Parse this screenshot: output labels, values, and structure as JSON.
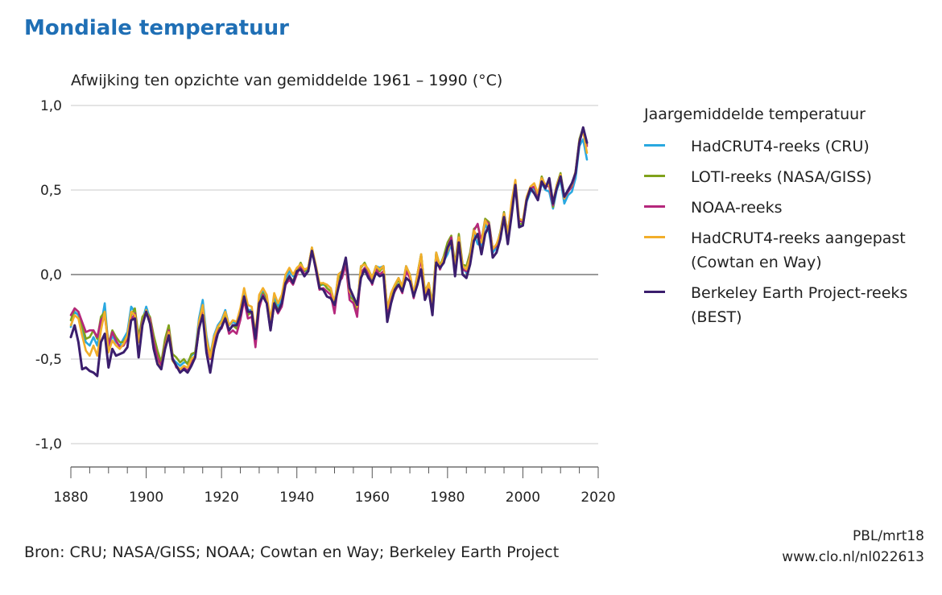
{
  "header": {
    "title": "Mondiale temperatuur",
    "ylabel": "Afwijking ten opzichte van gemiddelde 1961 – 1990 (°C)"
  },
  "legend": {
    "title": "Jaargemiddelde temperatuur"
  },
  "footer": {
    "source": "Bron: CRU; NASA/GISS; NOAA; Cowtan en Way; Berkeley Earth Project",
    "credit_line1": "PBL/mrt18",
    "credit_line2": "www.clo.nl/nl022613"
  },
  "chart_data": {
    "type": "line",
    "title": "Mondiale temperatuur",
    "ylabel": "Afwijking ten opzichte van gemiddelde 1961 – 1990 (°C)",
    "xlabel": "",
    "xlim": [
      1880,
      2020
    ],
    "ylim": [
      -1.1,
      1.0
    ],
    "xticks": [
      1880,
      1900,
      1920,
      1940,
      1960,
      1980,
      2000,
      2020
    ],
    "yticks": [
      {
        "value": 1.0,
        "label": "1,0"
      },
      {
        "value": 0.5,
        "label": "0,5"
      },
      {
        "value": 0.0,
        "label": "0,0"
      },
      {
        "value": -0.5,
        "label": "-0,5"
      },
      {
        "value": -1.0,
        "label": "-1,0"
      }
    ],
    "grid": "horizontal",
    "legend_position": "right",
    "x": [
      1880,
      1881,
      1882,
      1883,
      1884,
      1885,
      1886,
      1887,
      1888,
      1889,
      1890,
      1891,
      1892,
      1893,
      1894,
      1895,
      1896,
      1897,
      1898,
      1899,
      1900,
      1901,
      1902,
      1903,
      1904,
      1905,
      1906,
      1907,
      1908,
      1909,
      1910,
      1911,
      1912,
      1913,
      1914,
      1915,
      1916,
      1917,
      1918,
      1919,
      1920,
      1921,
      1922,
      1923,
      1924,
      1925,
      1926,
      1927,
      1928,
      1929,
      1930,
      1931,
      1932,
      1933,
      1934,
      1935,
      1936,
      1937,
      1938,
      1939,
      1940,
      1941,
      1942,
      1943,
      1944,
      1945,
      1946,
      1947,
      1948,
      1949,
      1950,
      1951,
      1952,
      1953,
      1954,
      1955,
      1956,
      1957,
      1958,
      1959,
      1960,
      1961,
      1962,
      1963,
      1964,
      1965,
      1966,
      1967,
      1968,
      1969,
      1970,
      1971,
      1972,
      1973,
      1974,
      1975,
      1976,
      1977,
      1978,
      1979,
      1980,
      1981,
      1982,
      1983,
      1984,
      1985,
      1986,
      1987,
      1988,
      1989,
      1990,
      1991,
      1992,
      1993,
      1994,
      1995,
      1996,
      1997,
      1998,
      1999,
      2000,
      2001,
      2002,
      2003,
      2004,
      2005,
      2006,
      2007,
      2008,
      2009,
      2010,
      2011,
      2012,
      2013,
      2014,
      2015,
      2016,
      2017
    ],
    "series": [
      {
        "name": "HadCRUT4-reeks (CRU)",
        "color": "#29a8e0",
        "values": [
          -0.31,
          -0.22,
          -0.24,
          -0.33,
          -0.4,
          -0.42,
          -0.37,
          -0.42,
          -0.3,
          -0.17,
          -0.44,
          -0.36,
          -0.4,
          -0.42,
          -0.38,
          -0.34,
          -0.19,
          -0.22,
          -0.38,
          -0.27,
          -0.19,
          -0.26,
          -0.42,
          -0.5,
          -0.55,
          -0.41,
          -0.32,
          -0.5,
          -0.52,
          -0.54,
          -0.52,
          -0.52,
          -0.48,
          -0.46,
          -0.26,
          -0.15,
          -0.36,
          -0.48,
          -0.36,
          -0.3,
          -0.27,
          -0.21,
          -0.3,
          -0.28,
          -0.29,
          -0.22,
          -0.1,
          -0.21,
          -0.21,
          -0.37,
          -0.15,
          -0.1,
          -0.15,
          -0.29,
          -0.14,
          -0.19,
          -0.14,
          -0.02,
          0.02,
          -0.01,
          0.02,
          0.05,
          0.02,
          0.02,
          0.15,
          0.05,
          -0.06,
          -0.06,
          -0.06,
          -0.08,
          -0.17,
          0.0,
          0.02,
          0.09,
          -0.11,
          -0.14,
          -0.19,
          0.05,
          0.06,
          0.03,
          -0.02,
          0.05,
          0.04,
          0.05,
          -0.2,
          -0.11,
          -0.06,
          -0.02,
          -0.07,
          0.05,
          0.0,
          -0.11,
          0.0,
          0.12,
          -0.12,
          -0.05,
          -0.2,
          0.13,
          0.03,
          0.08,
          0.12,
          0.18,
          0.04,
          0.2,
          0.04,
          0.01,
          0.08,
          0.24,
          0.18,
          0.17,
          0.3,
          0.25,
          0.13,
          0.16,
          0.22,
          0.34,
          0.21,
          0.41,
          0.54,
          0.3,
          0.29,
          0.43,
          0.49,
          0.51,
          0.45,
          0.54,
          0.5,
          0.49,
          0.39,
          0.5,
          0.56,
          0.42,
          0.47,
          0.49,
          0.57,
          0.76,
          0.8,
          0.68
        ]
      },
      {
        "name": "LOTI-reeks (NASA/GISS)",
        "color": "#80a21b",
        "values": [
          -0.27,
          -0.2,
          -0.22,
          -0.3,
          -0.38,
          -0.37,
          -0.33,
          -0.38,
          -0.25,
          -0.22,
          -0.41,
          -0.33,
          -0.37,
          -0.4,
          -0.4,
          -0.36,
          -0.24,
          -0.2,
          -0.37,
          -0.25,
          -0.22,
          -0.25,
          -0.36,
          -0.45,
          -0.52,
          -0.38,
          -0.3,
          -0.47,
          -0.49,
          -0.52,
          -0.5,
          -0.53,
          -0.47,
          -0.46,
          -0.3,
          -0.2,
          -0.38,
          -0.48,
          -0.38,
          -0.32,
          -0.31,
          -0.24,
          -0.33,
          -0.3,
          -0.32,
          -0.25,
          -0.13,
          -0.24,
          -0.22,
          -0.41,
          -0.18,
          -0.11,
          -0.15,
          -0.31,
          -0.16,
          -0.21,
          -0.17,
          -0.04,
          -0.01,
          -0.04,
          0.02,
          0.07,
          0.02,
          0.04,
          0.16,
          0.05,
          -0.07,
          -0.05,
          -0.08,
          -0.1,
          -0.18,
          -0.02,
          0.0,
          0.08,
          -0.13,
          -0.15,
          -0.22,
          0.04,
          0.07,
          0.02,
          -0.03,
          0.05,
          0.02,
          0.05,
          -0.22,
          -0.12,
          -0.07,
          -0.03,
          -0.09,
          0.03,
          0.0,
          -0.12,
          0.0,
          0.12,
          -0.1,
          -0.05,
          -0.17,
          0.13,
          0.05,
          0.11,
          0.19,
          0.23,
          0.06,
          0.24,
          0.06,
          0.05,
          0.13,
          0.27,
          0.29,
          0.2,
          0.33,
          0.31,
          0.15,
          0.17,
          0.25,
          0.37,
          0.24,
          0.4,
          0.53,
          0.3,
          0.3,
          0.45,
          0.51,
          0.52,
          0.46,
          0.58,
          0.52,
          0.54,
          0.4,
          0.53,
          0.6,
          0.46,
          0.49,
          0.53,
          0.61,
          0.8,
          0.87,
          0.77
        ]
      },
      {
        "name": "NOAA-reeks",
        "color": "#b5277c",
        "values": [
          -0.24,
          -0.2,
          -0.22,
          -0.28,
          -0.34,
          -0.33,
          -0.33,
          -0.37,
          -0.27,
          -0.24,
          -0.42,
          -0.34,
          -0.39,
          -0.43,
          -0.42,
          -0.38,
          -0.27,
          -0.23,
          -0.4,
          -0.28,
          -0.23,
          -0.26,
          -0.4,
          -0.49,
          -0.54,
          -0.42,
          -0.33,
          -0.49,
          -0.55,
          -0.56,
          -0.55,
          -0.57,
          -0.51,
          -0.49,
          -0.33,
          -0.21,
          -0.4,
          -0.5,
          -0.4,
          -0.33,
          -0.32,
          -0.26,
          -0.35,
          -0.33,
          -0.35,
          -0.27,
          -0.15,
          -0.26,
          -0.25,
          -0.43,
          -0.2,
          -0.12,
          -0.17,
          -0.33,
          -0.18,
          -0.23,
          -0.19,
          -0.06,
          -0.03,
          -0.06,
          0.0,
          0.05,
          0.0,
          0.02,
          0.15,
          0.03,
          -0.09,
          -0.08,
          -0.1,
          -0.12,
          -0.23,
          -0.05,
          -0.02,
          0.06,
          -0.15,
          -0.17,
          -0.25,
          0.01,
          0.04,
          0.0,
          -0.06,
          0.03,
          0.0,
          0.02,
          -0.25,
          -0.15,
          -0.1,
          -0.06,
          -0.11,
          0.02,
          -0.02,
          -0.14,
          -0.03,
          0.1,
          -0.13,
          -0.08,
          -0.2,
          0.1,
          0.03,
          0.09,
          0.16,
          0.22,
          0.04,
          0.22,
          0.03,
          0.02,
          0.11,
          0.26,
          0.3,
          0.19,
          0.32,
          0.3,
          0.15,
          0.17,
          0.24,
          0.36,
          0.24,
          0.42,
          0.54,
          0.32,
          0.31,
          0.45,
          0.51,
          0.52,
          0.47,
          0.57,
          0.53,
          0.52,
          0.41,
          0.52,
          0.58,
          0.45,
          0.49,
          0.52,
          0.6,
          0.79,
          0.86,
          0.76
        ]
      },
      {
        "name": "HadCRUT4-reeks aangepast\n(Cowtan en Way)",
        "color": "#f2ae2a",
        "values": [
          -0.3,
          -0.24,
          -0.26,
          -0.36,
          -0.45,
          -0.48,
          -0.42,
          -0.48,
          -0.33,
          -0.22,
          -0.46,
          -0.39,
          -0.42,
          -0.44,
          -0.41,
          -0.36,
          -0.22,
          -0.24,
          -0.4,
          -0.29,
          -0.21,
          -0.28,
          -0.44,
          -0.52,
          -0.56,
          -0.43,
          -0.34,
          -0.51,
          -0.54,
          -0.56,
          -0.54,
          -0.55,
          -0.5,
          -0.48,
          -0.28,
          -0.18,
          -0.38,
          -0.49,
          -0.37,
          -0.31,
          -0.28,
          -0.22,
          -0.3,
          -0.27,
          -0.28,
          -0.2,
          -0.08,
          -0.18,
          -0.19,
          -0.35,
          -0.12,
          -0.08,
          -0.12,
          -0.27,
          -0.11,
          -0.17,
          -0.12,
          0.0,
          0.04,
          0.0,
          0.04,
          0.06,
          0.03,
          0.04,
          0.16,
          0.06,
          -0.05,
          -0.05,
          -0.06,
          -0.08,
          -0.17,
          0.0,
          0.02,
          0.09,
          -0.1,
          -0.13,
          -0.19,
          0.05,
          0.06,
          0.03,
          -0.02,
          0.05,
          0.03,
          0.05,
          -0.2,
          -0.11,
          -0.06,
          -0.02,
          -0.07,
          0.05,
          0.0,
          -0.11,
          0.0,
          0.12,
          -0.11,
          -0.05,
          -0.19,
          0.13,
          0.04,
          0.1,
          0.14,
          0.2,
          0.05,
          0.22,
          0.05,
          0.03,
          0.1,
          0.26,
          0.22,
          0.19,
          0.32,
          0.28,
          0.15,
          0.18,
          0.24,
          0.36,
          0.24,
          0.43,
          0.56,
          0.33,
          0.32,
          0.46,
          0.52,
          0.54,
          0.48,
          0.57,
          0.53,
          0.53,
          0.43,
          0.53,
          0.59,
          0.45,
          0.5,
          0.53,
          0.61,
          0.79,
          0.85,
          0.72
        ]
      },
      {
        "name": "Berkeley Earth Project-reeks\n(BEST)",
        "color": "#3b1e6d",
        "values": [
          -0.37,
          -0.3,
          -0.4,
          -0.56,
          -0.55,
          -0.57,
          -0.58,
          -0.6,
          -0.4,
          -0.35,
          -0.55,
          -0.44,
          -0.48,
          -0.47,
          -0.46,
          -0.43,
          -0.27,
          -0.26,
          -0.49,
          -0.3,
          -0.22,
          -0.29,
          -0.44,
          -0.53,
          -0.56,
          -0.44,
          -0.36,
          -0.5,
          -0.54,
          -0.58,
          -0.56,
          -0.58,
          -0.54,
          -0.49,
          -0.32,
          -0.24,
          -0.46,
          -0.58,
          -0.44,
          -0.35,
          -0.31,
          -0.26,
          -0.33,
          -0.3,
          -0.3,
          -0.24,
          -0.13,
          -0.22,
          -0.22,
          -0.38,
          -0.17,
          -0.13,
          -0.17,
          -0.33,
          -0.17,
          -0.22,
          -0.17,
          -0.05,
          -0.01,
          -0.05,
          0.02,
          0.03,
          -0.01,
          0.02,
          0.14,
          0.04,
          -0.08,
          -0.09,
          -0.13,
          -0.14,
          -0.18,
          -0.08,
          0.01,
          0.1,
          -0.08,
          -0.13,
          -0.18,
          -0.02,
          0.03,
          -0.02,
          -0.05,
          0.01,
          -0.01,
          0.0,
          -0.28,
          -0.17,
          -0.09,
          -0.06,
          -0.1,
          -0.02,
          -0.04,
          -0.13,
          -0.06,
          0.03,
          -0.15,
          -0.09,
          -0.24,
          0.07,
          0.04,
          0.07,
          0.16,
          0.2,
          -0.01,
          0.19,
          0.0,
          -0.02,
          0.06,
          0.2,
          0.24,
          0.12,
          0.24,
          0.29,
          0.1,
          0.13,
          0.21,
          0.34,
          0.18,
          0.35,
          0.53,
          0.28,
          0.29,
          0.44,
          0.51,
          0.48,
          0.44,
          0.55,
          0.51,
          0.57,
          0.42,
          0.51,
          0.58,
          0.46,
          0.5,
          0.54,
          0.6,
          0.78,
          0.87,
          0.78
        ]
      }
    ]
  }
}
